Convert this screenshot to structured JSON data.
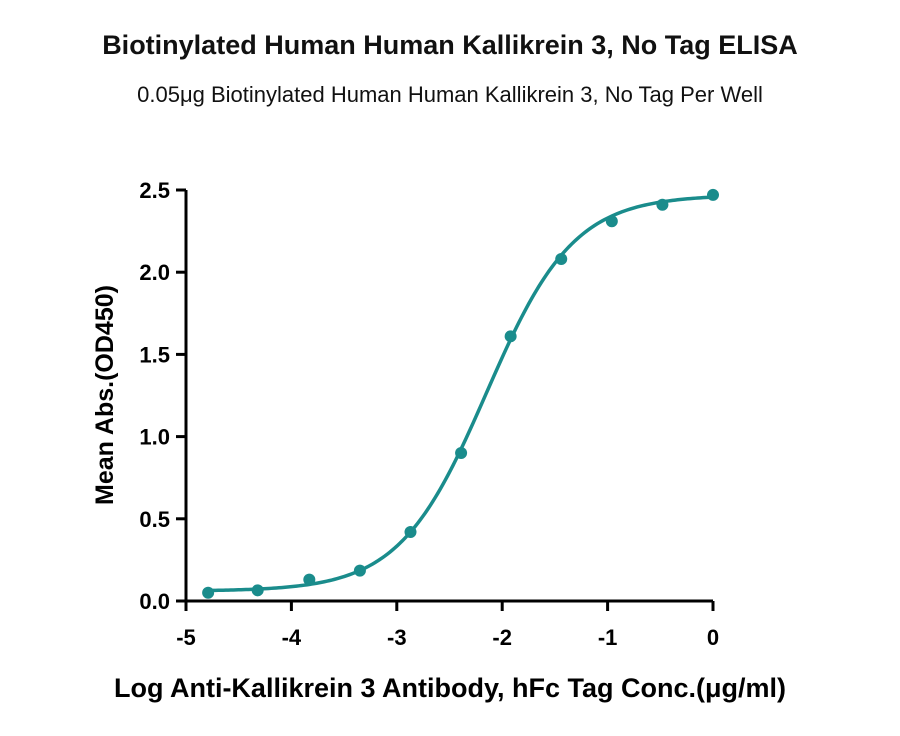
{
  "chart_data": {
    "type": "scatter",
    "title": "Biotinylated Human Human Kallikrein 3, No Tag ELISA",
    "subtitle": "0.05μg Biotinylated Human Human Kallikrein 3, No Tag Per Well",
    "xlabel": "Log Anti-Kallikrein 3 Antibody, hFc Tag Conc.(μg/ml)",
    "ylabel": "Mean Abs.(OD450)",
    "xlim": [
      -5,
      0
    ],
    "ylim": [
      0,
      2.5
    ],
    "x_ticks": [
      "-5",
      "-4",
      "-3",
      "-2",
      "-1",
      "0"
    ],
    "y_ticks": [
      "0.0",
      "0.5",
      "1.0",
      "1.5",
      "2.0",
      "2.5"
    ],
    "grid": false,
    "series": [
      {
        "color": "#1a8c8c",
        "x": [
          -4.79,
          -4.32,
          -3.83,
          -3.35,
          -2.87,
          -2.39,
          -1.92,
          -1.44,
          -0.96,
          -0.48,
          0.0
        ],
        "y": [
          0.05,
          0.065,
          0.13,
          0.185,
          0.42,
          0.9,
          1.61,
          2.08,
          2.31,
          2.41,
          2.47
        ],
        "fit": {
          "bottom": 0.06,
          "top": 2.47,
          "logEC50": -2.15,
          "hill": 1.05
        }
      }
    ]
  }
}
